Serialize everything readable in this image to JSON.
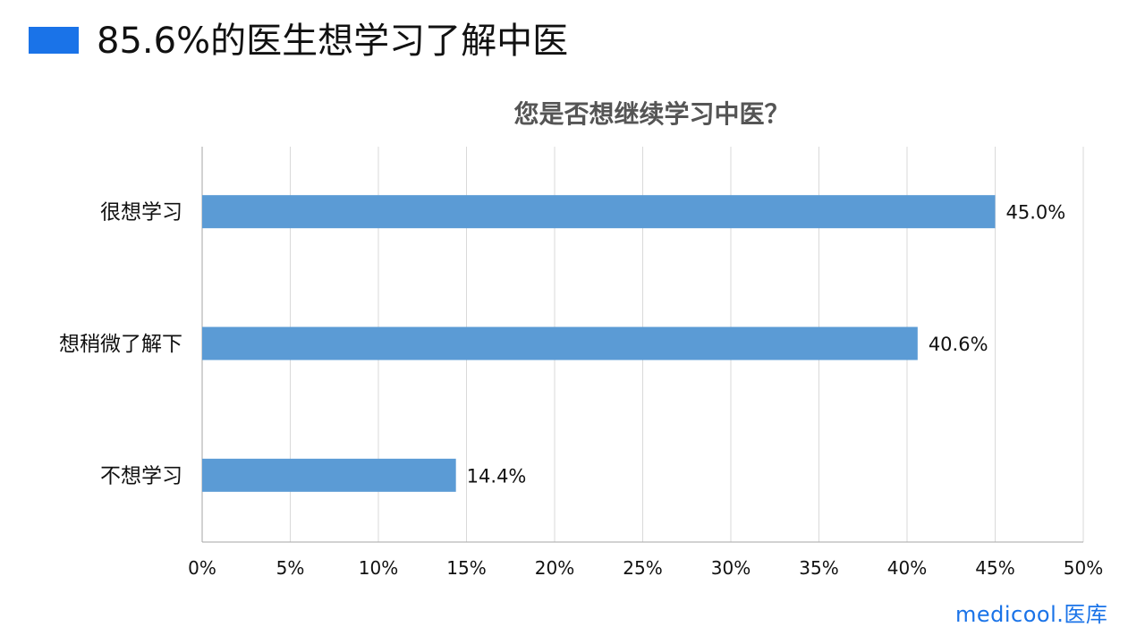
{
  "header": {
    "title": "85.6%的医生想学习了解中医",
    "accent_color": "#1a73e8"
  },
  "chart_data": {
    "type": "bar",
    "orientation": "horizontal",
    "title": "您是否想继续学习中医？",
    "categories": [
      "很想学习",
      "想稍微了解下",
      "不想学习"
    ],
    "values": [
      45.0,
      40.6,
      14.4
    ],
    "value_labels": [
      "45.0%",
      "40.6%",
      "14.4%"
    ],
    "xlim": [
      0,
      50
    ],
    "x_ticks": [
      0,
      5,
      10,
      15,
      20,
      25,
      30,
      35,
      40,
      45,
      50
    ],
    "x_tick_labels": [
      "0%",
      "5%",
      "10%",
      "15%",
      "20%",
      "25%",
      "30%",
      "35%",
      "40%",
      "45%",
      "50%"
    ],
    "grid": true,
    "legend": "none",
    "bar_color": "#5b9bd5"
  },
  "logo": {
    "text": "medicool.医库",
    "color": "#1a73e8"
  }
}
